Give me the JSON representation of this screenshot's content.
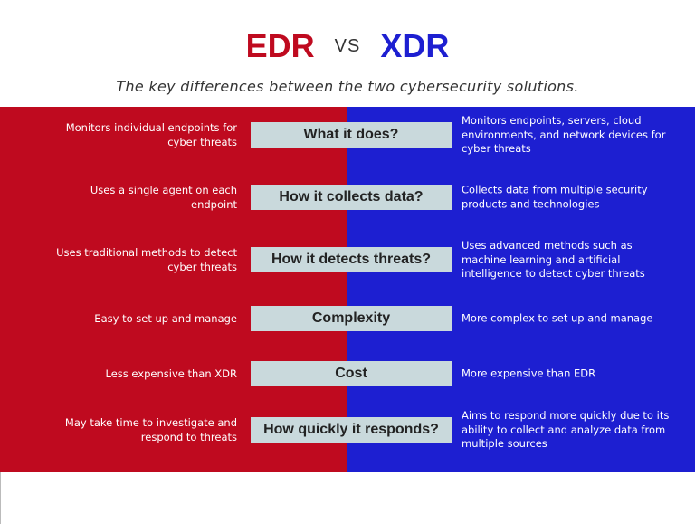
{
  "header": {
    "left": "EDR",
    "vs": "VS",
    "right": "XDR",
    "subtitle": "The key differences between the two cybersecurity solutions."
  },
  "rows": [
    {
      "edr": "Monitors individual endpoints for cyber threats",
      "question": "What it does?",
      "xdr": "Monitors endpoints, servers, cloud environments, and network devices for cyber threats"
    },
    {
      "edr": "Uses a single agent on each endpoint",
      "question": "How it collects data?",
      "xdr": "Collects data from multiple security products and technologies"
    },
    {
      "edr": "Uses traditional methods to detect cyber threats",
      "question": "How it detects threats?",
      "xdr": "Uses advanced methods such as machine learning and artificial intelligence to detect cyber threats"
    },
    {
      "edr": "Easy to set up and manage",
      "question": "Complexity",
      "xdr": "More complex to set up and manage"
    },
    {
      "edr": "Less expensive than XDR",
      "question": "Cost",
      "xdr": "More expensive than EDR"
    },
    {
      "edr": "May take time to investigate and respond to threats",
      "question": "How quickly it responds?",
      "xdr": "Aims to respond more quickly due to its ability to collect and analyze data from multiple sources"
    }
  ]
}
